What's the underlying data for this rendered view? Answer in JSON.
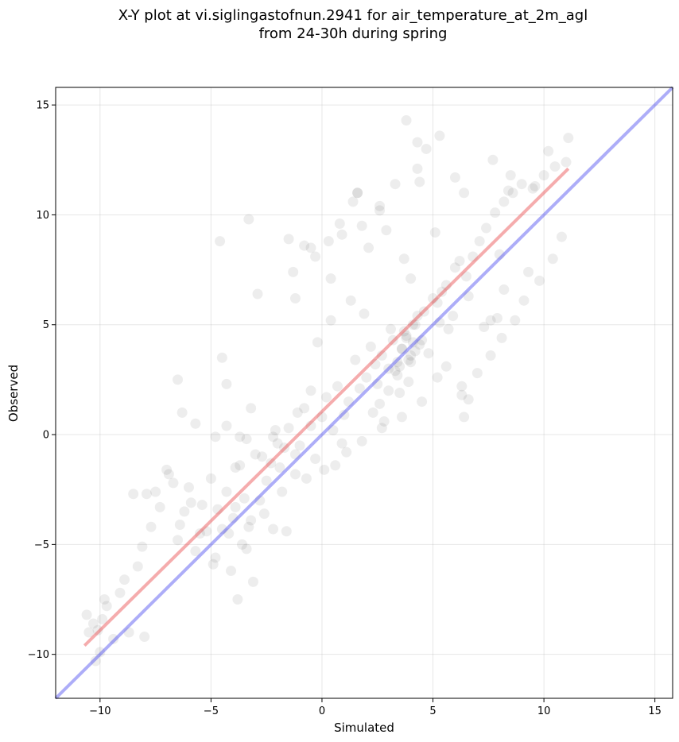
{
  "chart_data": {
    "type": "scatter",
    "title": [
      "X-Y plot at vi.siglingastofnun.2941 for air_temperature_at_2m_agl",
      "from 24-30h during spring"
    ],
    "xlabel": "Simulated",
    "ylabel": "Observed",
    "xlim": [
      -12,
      15.8
    ],
    "ylim": [
      -12,
      15.8
    ],
    "xticks": [
      -10,
      -5,
      0,
      5,
      10,
      15
    ],
    "yticks": [
      -10,
      -5,
      0,
      5,
      10,
      15
    ],
    "grid": true,
    "point_color": "#000000",
    "point_alpha": 0.07,
    "regression_line": {
      "color": "#e8474a",
      "x": [
        -10.7,
        11.1
      ],
      "y": [
        -9.6,
        12.1
      ]
    },
    "identity_line": {
      "color": "#4a4af0",
      "x": [
        -12,
        15.8
      ],
      "y": [
        -12,
        15.8
      ]
    },
    "series": [
      {
        "x": [
          -10.6,
          -10.3,
          -10.0,
          -9.8,
          -10.5,
          -9.7,
          -10.2,
          -9.4,
          -9.1,
          -10.1,
          -8.9,
          -8.3,
          -8.1,
          -7.7,
          -7.9,
          -7.3,
          -7.0,
          -6.7,
          -6.5,
          -6.4,
          -6.2,
          -6.0,
          -5.7,
          -5.4,
          -5.2,
          -5.0,
          -4.8,
          -4.7,
          -4.5,
          -4.3,
          -4.2,
          -4.1,
          -3.9,
          -3.7,
          -3.6,
          -3.5,
          -3.3,
          -3.0,
          -2.8,
          -2.5,
          -2.3,
          -2.0,
          -1.8,
          -1.5,
          -1.2,
          -1.0,
          -0.8,
          -0.5,
          -0.3,
          0.0,
          0.2,
          0.5,
          0.7,
          1.0,
          1.2,
          1.5,
          1.7,
          2.0,
          2.2,
          2.5,
          2.7,
          3.0,
          3.2,
          3.4,
          3.6,
          3.8,
          4.0,
          4.2,
          4.4,
          4.6,
          4.8,
          5.0,
          5.3,
          5.6,
          5.9,
          6.2,
          6.5,
          6.8,
          7.1,
          7.4,
          7.8,
          8.2,
          8.6,
          9.0,
          9.5,
          10.0,
          10.5,
          11.0,
          -4.8,
          -4.3,
          -3.9,
          -3.4,
          -3.2,
          -2.7,
          -2.1,
          -1.7,
          -1.1,
          -0.5,
          -0.2,
          0.4,
          1.3,
          1.9,
          2.4,
          3.1,
          3.5,
          3.9,
          4.1,
          4.5,
          5.2,
          5.7,
          6.3,
          6.4,
          -6.3,
          -6.5,
          -5.7,
          -4.5,
          -2.9,
          -1.2,
          0.4,
          0.8,
          1.6,
          2.6,
          3.3,
          4.3,
          4.7,
          5.1,
          6.0,
          6.6,
          7.6,
          8.0,
          8.5,
          9.6,
          10.2,
          11.1,
          -1.3,
          -0.8,
          -0.3,
          0.3,
          0.9,
          1.4,
          1.8,
          2.1,
          2.9,
          3.7,
          4.0,
          4.4,
          5.4,
          -8.5,
          -7.5,
          -6.9,
          -5.9,
          -5.5,
          -4.9,
          -4.0,
          -3.4,
          -2.6,
          -2.2,
          -1.6,
          -0.7,
          0.1,
          0.6,
          1.1,
          2.3,
          2.8,
          3.4,
          3.6,
          3.8,
          4.0,
          4.2,
          3.7,
          3.9,
          4.1,
          3.5,
          3.3,
          4.3,
          3.0,
          2.6,
          -9.9,
          -8.7,
          -8.0,
          -3.8,
          -3.1,
          -1.9,
          6.3,
          6.6,
          7.0,
          7.6,
          8.1,
          8.7,
          9.1,
          9.8,
          10.4,
          10.8,
          -3.3,
          -4.6,
          -1.5,
          -0.5,
          1.6,
          2.6,
          3.8,
          4.3,
          5.3,
          6.0,
          7.7,
          8.4,
          6.4,
          -4.3,
          -3.7,
          -3.2,
          -2.2,
          -1.2,
          0.9,
          1.8,
          2.7,
          3.6,
          4.5,
          5.2,
          5.6,
          7.3,
          7.9,
          8.2,
          9.3
        ],
        "y": [
          -8.2,
          -8.6,
          -9.9,
          -7.5,
          -9.0,
          -7.8,
          -10.3,
          -9.3,
          -7.2,
          -8.9,
          -6.6,
          -6.0,
          -5.1,
          -4.2,
          -2.7,
          -3.3,
          -1.6,
          -2.2,
          -4.8,
          -4.1,
          -3.5,
          -2.4,
          -5.3,
          -3.2,
          -4.4,
          -2.0,
          -5.6,
          -3.4,
          -4.3,
          -2.6,
          -4.5,
          -6.2,
          -3.3,
          -1.4,
          -5.0,
          -2.9,
          -4.2,
          -0.9,
          -3.0,
          -2.1,
          -1.3,
          -0.4,
          -2.6,
          0.3,
          -1.8,
          -0.5,
          1.2,
          0.4,
          -1.1,
          0.8,
          1.7,
          0.2,
          2.2,
          0.9,
          1.5,
          3.4,
          2.1,
          2.6,
          4.0,
          2.3,
          3.6,
          3.0,
          4.3,
          2.7,
          3.9,
          4.4,
          3.3,
          5.0,
          4.1,
          5.6,
          3.7,
          6.2,
          5.1,
          6.8,
          5.4,
          7.9,
          7.2,
          8.1,
          8.8,
          9.4,
          10.1,
          10.6,
          11.0,
          11.4,
          11.2,
          11.8,
          12.2,
          12.4,
          -0.1,
          0.4,
          -1.5,
          -0.2,
          -3.9,
          -1.0,
          0.2,
          -0.6,
          1.0,
          2.0,
          4.2,
          5.2,
          6.1,
          5.5,
          3.2,
          4.8,
          1.9,
          2.4,
          5.0,
          4.3,
          6.0,
          4.8,
          1.8,
          0.8,
          1.0,
          2.5,
          0.5,
          3.5,
          6.4,
          6.2,
          7.1,
          9.6,
          11.0,
          10.4,
          11.4,
          12.1,
          13.0,
          9.2,
          7.6,
          6.3,
          5.2,
          8.2,
          11.8,
          11.3,
          12.9,
          13.5,
          7.4,
          8.6,
          8.1,
          8.8,
          9.1,
          10.6,
          9.5,
          8.5,
          9.3,
          8.0,
          7.1,
          11.5,
          6.5,
          -2.7,
          -2.6,
          -1.8,
          -3.1,
          -4.5,
          -5.9,
          -3.8,
          -5.2,
          -3.6,
          -4.3,
          -4.4,
          -2.0,
          -1.6,
          -1.4,
          -0.8,
          1.0,
          0.6,
          3.3,
          3.9,
          4.5,
          3.6,
          3.8,
          4.7,
          3.4,
          4.2,
          3.1,
          2.9,
          5.4,
          2.0,
          1.4,
          -8.4,
          -9.0,
          -9.2,
          -7.5,
          -6.7,
          -1.5,
          2.2,
          1.6,
          2.8,
          3.6,
          4.4,
          5.2,
          6.1,
          7.0,
          8.0,
          9.0,
          9.8,
          8.8,
          8.9,
          8.5,
          11.0,
          10.2,
          14.3,
          13.3,
          13.6,
          11.7,
          12.5,
          11.1,
          11.0,
          2.3,
          -0.1,
          1.2,
          -0.1,
          -0.9,
          -0.4,
          -0.3,
          0.3,
          0.8,
          1.5,
          2.6,
          3.1,
          4.9,
          5.3,
          6.6,
          7.4
        ]
      }
    ]
  }
}
